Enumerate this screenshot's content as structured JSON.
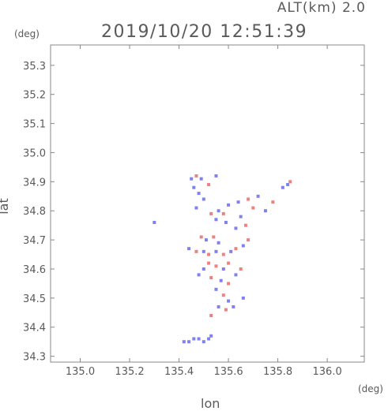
{
  "header": {
    "altitude_label": "ALT(km) 2.0",
    "timestamp": "2019/10/20 12:51:39"
  },
  "chart_data": {
    "type": "scatter",
    "title": "2019/10/20 12:51:39",
    "subtitle": "ALT(km) 2.0",
    "xlabel": "lon",
    "ylabel": "lat",
    "xunit": "(deg)",
    "yunit": "(deg)",
    "xlim": [
      134.88,
      136.15
    ],
    "ylim": [
      34.28,
      35.37
    ],
    "xticks": [
      "135.0",
      "135.2",
      "135.4",
      "135.6",
      "135.8",
      "136.0"
    ],
    "yticks": [
      "34.3",
      "34.4",
      "34.5",
      "34.6",
      "34.7",
      "34.8",
      "34.9",
      "35.0",
      "35.1",
      "35.2",
      "35.3"
    ],
    "grid": false,
    "colors": {
      "positive": "#f08080",
      "negative": "#8080f0",
      "frame": "#888888"
    },
    "series": [
      {
        "values": [
          [
            135.45,
            34.91,
            "n"
          ],
          [
            135.47,
            34.92,
            "p"
          ],
          [
            135.49,
            34.91,
            "n"
          ],
          [
            135.55,
            34.92,
            "n"
          ],
          [
            135.46,
            34.88,
            "n"
          ],
          [
            135.48,
            34.86,
            "n"
          ],
          [
            135.52,
            34.89,
            "p"
          ],
          [
            135.5,
            34.84,
            "n"
          ],
          [
            135.47,
            34.81,
            "n"
          ],
          [
            135.53,
            34.79,
            "p"
          ],
          [
            135.56,
            34.8,
            "n"
          ],
          [
            135.58,
            34.79,
            "p"
          ],
          [
            135.55,
            34.77,
            "n"
          ],
          [
            135.59,
            34.76,
            "n"
          ],
          [
            135.6,
            34.82,
            "n"
          ],
          [
            135.64,
            34.83,
            "n"
          ],
          [
            135.68,
            34.84,
            "p"
          ],
          [
            135.72,
            34.85,
            "n"
          ],
          [
            135.7,
            34.81,
            "p"
          ],
          [
            135.75,
            34.8,
            "n"
          ],
          [
            135.78,
            34.83,
            "p"
          ],
          [
            135.82,
            34.88,
            "n"
          ],
          [
            135.85,
            34.9,
            "p"
          ],
          [
            135.84,
            34.89,
            "n"
          ],
          [
            135.65,
            34.78,
            "n"
          ],
          [
            135.67,
            34.75,
            "p"
          ],
          [
            135.63,
            34.74,
            "n"
          ],
          [
            135.3,
            34.76,
            "n"
          ],
          [
            135.49,
            34.71,
            "p"
          ],
          [
            135.51,
            34.7,
            "n"
          ],
          [
            135.54,
            34.71,
            "p"
          ],
          [
            135.56,
            34.69,
            "n"
          ],
          [
            135.44,
            34.67,
            "n"
          ],
          [
            135.47,
            34.66,
            "p"
          ],
          [
            135.5,
            34.66,
            "n"
          ],
          [
            135.52,
            34.65,
            "p"
          ],
          [
            135.55,
            34.66,
            "n"
          ],
          [
            135.58,
            34.65,
            "p"
          ],
          [
            135.61,
            34.66,
            "n"
          ],
          [
            135.63,
            34.67,
            "p"
          ],
          [
            135.66,
            34.68,
            "n"
          ],
          [
            135.68,
            34.7,
            "p"
          ],
          [
            135.6,
            34.62,
            "p"
          ],
          [
            135.58,
            34.6,
            "n"
          ],
          [
            135.55,
            34.61,
            "p"
          ],
          [
            135.52,
            34.62,
            "p"
          ],
          [
            135.5,
            34.6,
            "n"
          ],
          [
            135.48,
            34.58,
            "n"
          ],
          [
            135.53,
            34.57,
            "p"
          ],
          [
            135.57,
            34.56,
            "n"
          ],
          [
            135.6,
            34.55,
            "p"
          ],
          [
            135.63,
            34.58,
            "n"
          ],
          [
            135.65,
            34.6,
            "p"
          ],
          [
            135.55,
            34.53,
            "n"
          ],
          [
            135.58,
            34.51,
            "p"
          ],
          [
            135.6,
            34.49,
            "n"
          ],
          [
            135.56,
            34.47,
            "n"
          ],
          [
            135.59,
            34.46,
            "p"
          ],
          [
            135.62,
            34.47,
            "n"
          ],
          [
            135.66,
            34.5,
            "n"
          ],
          [
            135.53,
            34.44,
            "p"
          ],
          [
            135.42,
            34.35,
            "n"
          ],
          [
            135.44,
            34.35,
            "n"
          ],
          [
            135.46,
            34.36,
            "n"
          ],
          [
            135.48,
            34.36,
            "n"
          ],
          [
            135.5,
            34.35,
            "n"
          ],
          [
            135.52,
            34.36,
            "n"
          ],
          [
            135.53,
            34.37,
            "n"
          ]
        ]
      }
    ]
  }
}
